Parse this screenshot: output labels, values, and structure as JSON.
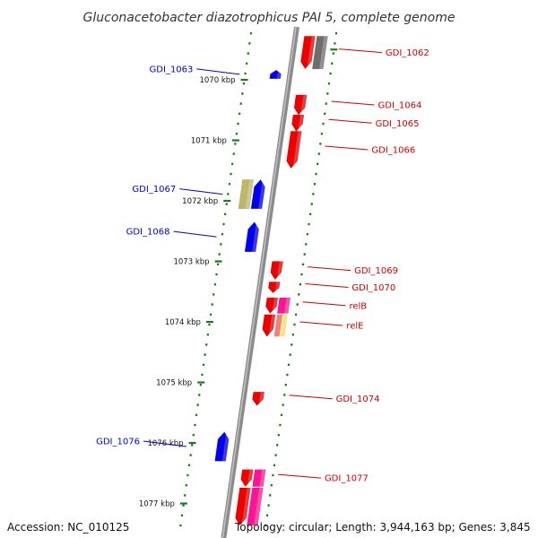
{
  "title": "Gluconacetobacter diazotrophicus PAI 5, complete genome",
  "footer": {
    "accession": "Accession: NC_010125",
    "topology": "Topology: circular; Length: 3,944,163 bp; Genes: 3,845"
  },
  "colors": {
    "backbone": "#8c8c8c",
    "forward": "#ee0000",
    "reverse": "#0000ee",
    "pink": "#ff1493",
    "gray": "#6e6e6e",
    "khaki": "#bdb76b",
    "yellow": "#f0e68c",
    "salmon": "#f08080",
    "scale": "#1a7a1a"
  },
  "ticks": [
    {
      "label": "1070 kbp",
      "kbp": 1070
    },
    {
      "label": "1071 kbp",
      "kbp": 1071
    },
    {
      "label": "1072 kbp",
      "kbp": 1072
    },
    {
      "label": "1073 kbp",
      "kbp": 1073
    },
    {
      "label": "1074 kbp",
      "kbp": 1074
    },
    {
      "label": "1075 kbp",
      "kbp": 1075
    },
    {
      "label": "1076 kbp",
      "kbp": 1076
    },
    {
      "label": "1077 kbp",
      "kbp": 1077
    }
  ],
  "genes": [
    {
      "label": "GDI_1062",
      "strand": "forward",
      "color": "#ee0000",
      "start_kbp": 1069.28,
      "end_kbp": 1069.82,
      "partner": {
        "color": "#6e6e6e"
      }
    },
    {
      "label": "GDI_1063",
      "strand": "reverse",
      "color": "#0000ee",
      "start_kbp": 1069.84,
      "end_kbp": 1069.98
    },
    {
      "label": "GDI_1064",
      "strand": "forward",
      "color": "#ee0000",
      "start_kbp": 1070.25,
      "end_kbp": 1070.58
    },
    {
      "label": "GDI_1065",
      "strand": "forward",
      "color": "#ee0000",
      "start_kbp": 1070.58,
      "end_kbp": 1070.85
    },
    {
      "label": "GDI_1066",
      "strand": "forward",
      "color": "#ee0000",
      "start_kbp": 1070.85,
      "end_kbp": 1071.46
    },
    {
      "label": "GDI_1067",
      "strand": "reverse",
      "color": "#0000ee",
      "start_kbp": 1071.65,
      "end_kbp": 1072.13,
      "partner": {
        "color": "#bdb76b"
      }
    },
    {
      "label": "GDI_1068",
      "strand": "reverse",
      "color": "#0000ee",
      "start_kbp": 1072.35,
      "end_kbp": 1072.84
    },
    {
      "label": "GDI_1069",
      "strand": "forward",
      "color": "#ee0000",
      "start_kbp": 1073.0,
      "end_kbp": 1073.3
    },
    {
      "label": "GDI_1070",
      "strand": "forward",
      "color": "#ee0000",
      "start_kbp": 1073.34,
      "end_kbp": 1073.52
    },
    {
      "label": "relB",
      "strand": "forward",
      "color": "#ee0000",
      "start_kbp": 1073.6,
      "end_kbp": 1073.86,
      "partner": {
        "color": "#ff1493"
      }
    },
    {
      "label": "relE",
      "strand": "forward",
      "color": "#ee0000",
      "start_kbp": 1073.88,
      "end_kbp": 1074.24,
      "partner": {
        "color": "#f0e68c",
        "color2": "#f08080"
      }
    },
    {
      "label": "GDI_1074",
      "strand": "forward",
      "color": "#ee0000",
      "start_kbp": 1075.16,
      "end_kbp": 1075.38
    },
    {
      "label": "GDI_1076",
      "strand": "reverse",
      "color": "#0000ee",
      "start_kbp": 1075.82,
      "end_kbp": 1076.3
    },
    {
      "label": "GDI_1077",
      "strand": "forward",
      "color": "#ee0000",
      "start_kbp": 1076.44,
      "end_kbp": 1076.72,
      "partner": {
        "color": "#ff1493"
      }
    },
    {
      "label": "",
      "strand": "forward",
      "color": "#ee0000",
      "start_kbp": 1076.74,
      "end_kbp": 1077.36,
      "partner": {
        "color": "#ff1493"
      }
    }
  ]
}
